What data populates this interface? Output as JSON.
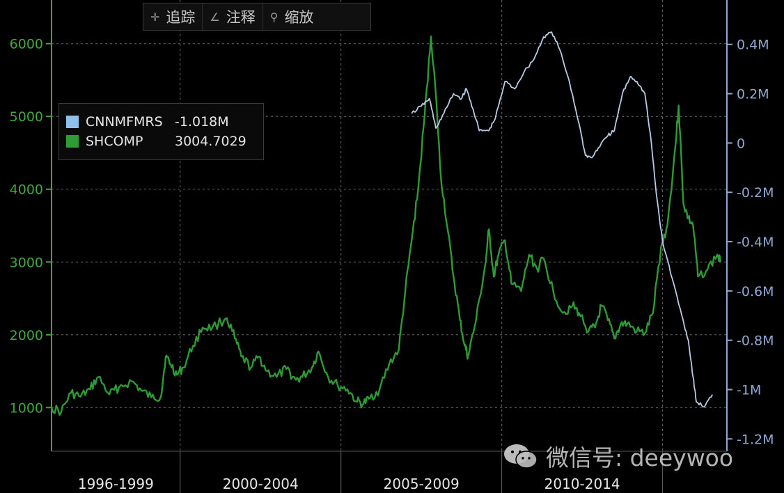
{
  "toolbar": {
    "items": [
      {
        "icon": "crosshair-icon",
        "label": "追踪"
      },
      {
        "icon": "pencil-icon",
        "label": "注释"
      },
      {
        "icon": "magnifier-icon",
        "label": "缩放"
      }
    ]
  },
  "legend": {
    "items": [
      {
        "name": "CNNMFMRS",
        "value": "-1.018M",
        "color": "#8fc0ec"
      },
      {
        "name": "SHCOMP",
        "value": "3004.7029",
        "color": "#2e9b35"
      }
    ]
  },
  "watermark": {
    "text": "微信号: deeywoo"
  },
  "colors": {
    "background": "#000000",
    "left_axis": "#3fa83a",
    "right_axis": "#8ea8d0",
    "shcomp": "#2e9b35",
    "cnnmfmrs": "#b7cde6",
    "grid": "#6a6a6a"
  },
  "chart_data": {
    "type": "line",
    "x_period_labels": [
      "1996-1999",
      "2000-2004",
      "2005-2009",
      "2010-2014"
    ],
    "left_axis": {
      "ticks": [
        "1000",
        "2000",
        "3000",
        "4000",
        "5000",
        "6000"
      ],
      "range": [
        400,
        6600
      ]
    },
    "right_axis": {
      "ticks": [
        "0.4M",
        "0.2M",
        "0",
        "-0.2M",
        "-0.4M",
        "-0.6M",
        "-0.8M",
        "-1M",
        "-1.2M"
      ],
      "range": [
        -1.25,
        0.58
      ]
    },
    "grid": true,
    "legend_position": "top-left",
    "series": [
      {
        "name": "SHCOMP",
        "axis": "left",
        "color": "#2e9b35",
        "points": [
          [
            1996.0,
            1000
          ],
          [
            1996.3,
            940
          ],
          [
            1996.6,
            1200
          ],
          [
            1996.9,
            1150
          ],
          [
            1997.2,
            1250
          ],
          [
            1997.45,
            1420
          ],
          [
            1997.8,
            1180
          ],
          [
            1998.1,
            1280
          ],
          [
            1998.5,
            1360
          ],
          [
            1998.8,
            1230
          ],
          [
            1999.1,
            1140
          ],
          [
            1999.4,
            1150
          ],
          [
            1999.55,
            1700
          ],
          [
            1999.7,
            1600
          ],
          [
            1999.9,
            1450
          ],
          [
            2000.1,
            1550
          ],
          [
            2000.4,
            1850
          ],
          [
            2000.7,
            2100
          ],
          [
            2001.0,
            2100
          ],
          [
            2001.45,
            2230
          ],
          [
            2001.7,
            1950
          ],
          [
            2001.9,
            1700
          ],
          [
            2002.2,
            1550
          ],
          [
            2002.45,
            1700
          ],
          [
            2002.7,
            1500
          ],
          [
            2003.0,
            1420
          ],
          [
            2003.3,
            1530
          ],
          [
            2003.6,
            1380
          ],
          [
            2003.8,
            1420
          ],
          [
            2004.1,
            1550
          ],
          [
            2004.3,
            1770
          ],
          [
            2004.6,
            1420
          ],
          [
            2004.9,
            1300
          ],
          [
            2005.2,
            1250
          ],
          [
            2005.5,
            1080
          ],
          [
            2005.7,
            1050
          ],
          [
            2005.9,
            1130
          ],
          [
            2006.2,
            1250
          ],
          [
            2006.5,
            1600
          ],
          [
            2006.8,
            1800
          ],
          [
            2007.0,
            2600
          ],
          [
            2007.2,
            3300
          ],
          [
            2007.4,
            4000
          ],
          [
            2007.6,
            5000
          ],
          [
            2007.8,
            6100
          ],
          [
            2007.95,
            5300
          ],
          [
            2008.1,
            4200
          ],
          [
            2008.3,
            3500
          ],
          [
            2008.5,
            2800
          ],
          [
            2008.7,
            2200
          ],
          [
            2008.85,
            1850
          ],
          [
            2008.95,
            1700
          ],
          [
            2009.2,
            2200
          ],
          [
            2009.5,
            3000
          ],
          [
            2009.6,
            3450
          ],
          [
            2009.75,
            2800
          ],
          [
            2009.9,
            3100
          ],
          [
            2010.1,
            3300
          ],
          [
            2010.3,
            2700
          ],
          [
            2010.6,
            2600
          ],
          [
            2010.85,
            3100
          ],
          [
            2011.1,
            2900
          ],
          [
            2011.3,
            3050
          ],
          [
            2011.6,
            2600
          ],
          [
            2011.9,
            2300
          ],
          [
            2012.2,
            2400
          ],
          [
            2012.4,
            2300
          ],
          [
            2012.7,
            2050
          ],
          [
            2012.9,
            2100
          ],
          [
            2013.1,
            2400
          ],
          [
            2013.3,
            2200
          ],
          [
            2013.5,
            1950
          ],
          [
            2013.7,
            2150
          ],
          [
            2013.9,
            2150
          ],
          [
            2014.2,
            2050
          ],
          [
            2014.45,
            2020
          ],
          [
            2014.7,
            2300
          ],
          [
            2014.95,
            3200
          ],
          [
            2015.15,
            3500
          ],
          [
            2015.4,
            4600
          ],
          [
            2015.5,
            5150
          ],
          [
            2015.65,
            3800
          ],
          [
            2015.8,
            3600
          ],
          [
            2015.95,
            3500
          ],
          [
            2016.1,
            2800
          ],
          [
            2016.4,
            2900
          ],
          [
            2016.7,
            3100
          ],
          [
            2016.8,
            3000
          ]
        ]
      },
      {
        "name": "CNNMFMRS",
        "axis": "right",
        "color": "#b7cde6",
        "points": [
          [
            2007.2,
            0.12
          ],
          [
            2007.5,
            0.15
          ],
          [
            2007.75,
            0.18
          ],
          [
            2007.95,
            0.06
          ],
          [
            2008.2,
            0.12
          ],
          [
            2008.5,
            0.2
          ],
          [
            2008.75,
            0.18
          ],
          [
            2008.9,
            0.22
          ],
          [
            2009.1,
            0.14
          ],
          [
            2009.3,
            0.05
          ],
          [
            2009.6,
            0.05
          ],
          [
            2009.8,
            0.1
          ],
          [
            2010.1,
            0.25
          ],
          [
            2010.4,
            0.22
          ],
          [
            2010.7,
            0.29
          ],
          [
            2011.0,
            0.34
          ],
          [
            2011.3,
            0.43
          ],
          [
            2011.55,
            0.45
          ],
          [
            2011.8,
            0.38
          ],
          [
            2012.1,
            0.25
          ],
          [
            2012.4,
            0.08
          ],
          [
            2012.6,
            -0.05
          ],
          [
            2012.8,
            -0.06
          ],
          [
            2013.0,
            -0.02
          ],
          [
            2013.3,
            0.03
          ],
          [
            2013.5,
            0.05
          ],
          [
            2013.75,
            0.2
          ],
          [
            2014.0,
            0.27
          ],
          [
            2014.2,
            0.25
          ],
          [
            2014.45,
            0.2
          ],
          [
            2014.65,
            0.0
          ],
          [
            2014.8,
            -0.2
          ],
          [
            2015.0,
            -0.4
          ],
          [
            2015.3,
            -0.55
          ],
          [
            2015.6,
            -0.7
          ],
          [
            2015.8,
            -0.8
          ],
          [
            2015.95,
            -0.95
          ],
          [
            2016.05,
            -1.05
          ],
          [
            2016.3,
            -1.07
          ],
          [
            2016.55,
            -1.02
          ]
        ]
      }
    ]
  }
}
